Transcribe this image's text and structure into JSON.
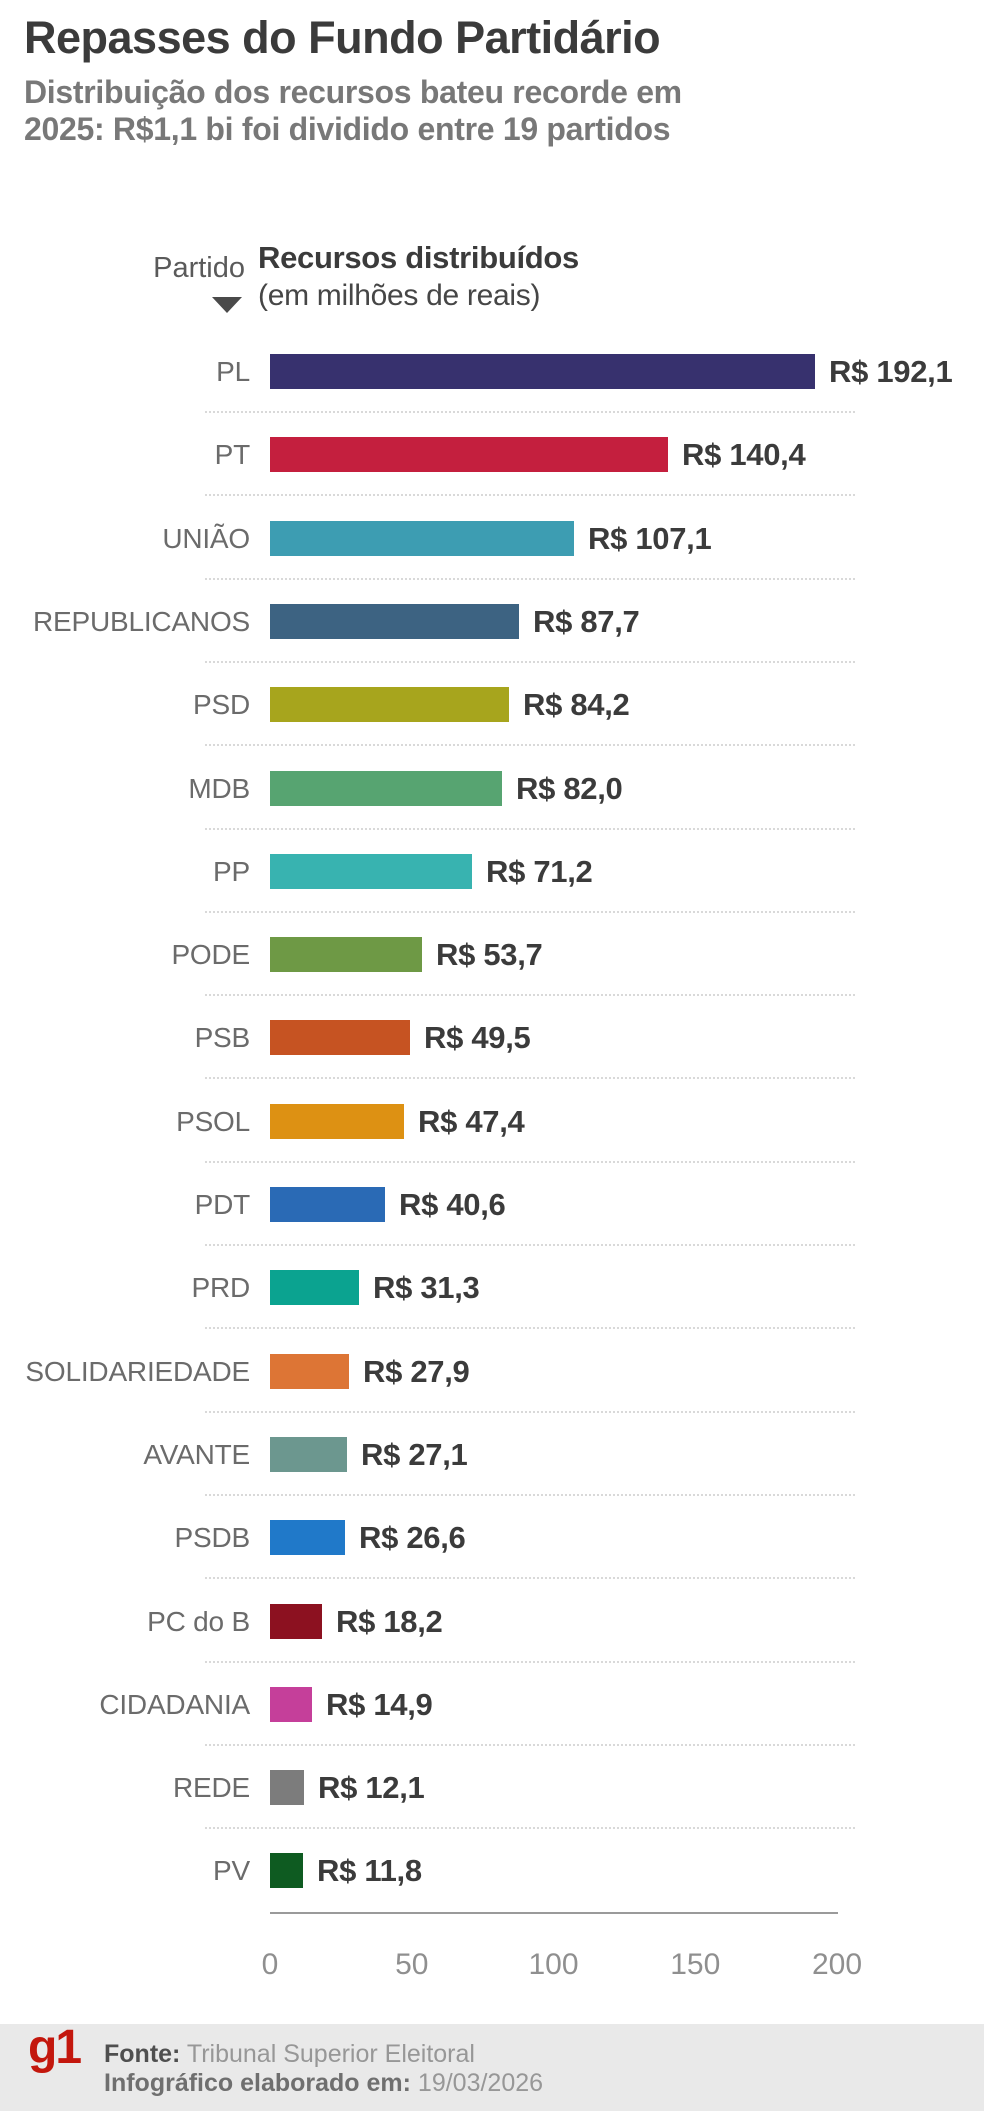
{
  "title": "Repasses do Fundo Partidário",
  "subtitle_lines": {
    "0": "Distribuição dos recursos bateu recorde em",
    "1": "2025: R$1,1 bi foi dividido entre 19 partidos"
  },
  "columns": {
    "party": "Partido",
    "resources": "Recursos distribuídos",
    "resources_unit": "(em milhões de reais)"
  },
  "chart_data": {
    "type": "bar",
    "orientation": "horizontal",
    "title": "Recursos distribuídos (em milhões de reais)",
    "xlabel": "Recursos distribuídos (em milhões de reais)",
    "ylabel": "Partido",
    "xlim": [
      0,
      200
    ],
    "x_ticks": [
      0,
      50,
      100,
      150,
      200
    ],
    "grid": false,
    "categories": [
      "PL",
      "PT",
      "UNIÃO",
      "REPUBLICANOS",
      "PSD",
      "MDB",
      "PP",
      "PODE",
      "PSB",
      "PSOL",
      "PDT",
      "PRD",
      "SOLIDARIEDADE",
      "AVANTE",
      "PSDB",
      "PC do B",
      "CIDADANIA",
      "REDE",
      "PV"
    ],
    "values": [
      192.1,
      140.4,
      107.1,
      87.7,
      84.2,
      82.0,
      71.2,
      53.7,
      49.5,
      47.4,
      40.6,
      31.3,
      27.9,
      27.1,
      26.6,
      18.2,
      14.9,
      12.1,
      11.8
    ],
    "value_labels": [
      "R$ 192,1",
      "R$ 140,4",
      "R$ 107,1",
      "R$ 87,7",
      "R$ 84,2",
      "R$ 82,0",
      "R$ 71,2",
      "R$ 53,7",
      "R$ 49,5",
      "R$ 47,4",
      "R$ 40,6",
      "R$ 31,3",
      "R$ 27,9",
      "R$ 27,1",
      "R$ 26,6",
      "R$ 18,2",
      "R$ 14,9",
      "R$ 12,1",
      "R$ 11,8"
    ],
    "bar_colors": [
      "#37316e",
      "#c41f3e",
      "#3d9db2",
      "#3d6382",
      "#a7a51d",
      "#57a471",
      "#38b3b0",
      "#6e9945",
      "#c65322",
      "#dd9113",
      "#2a6ab5",
      "#0ba390",
      "#dd7535",
      "#6c978f",
      "#2079c9",
      "#8c1120",
      "#c53f9a",
      "#7c7c7c",
      "#0e5b21"
    ]
  },
  "footer": {
    "logo": "g1",
    "source_label": "Fonte:",
    "source_value": " Tribunal Superior Eleitoral",
    "date_label": "Infográfico elaborado em:",
    "date_value": " 19/03/2026"
  },
  "colors": {
    "title_text": "#3b3b3b",
    "subtitle_text": "#787878",
    "party_label_text": "#6b6b6b",
    "value_label_text": "#3b3b3b",
    "tick_text": "#8f8f8f",
    "separator": "#d9d9d9",
    "footer_background": "#e9e9e9",
    "logo_red": "#c3170d"
  }
}
